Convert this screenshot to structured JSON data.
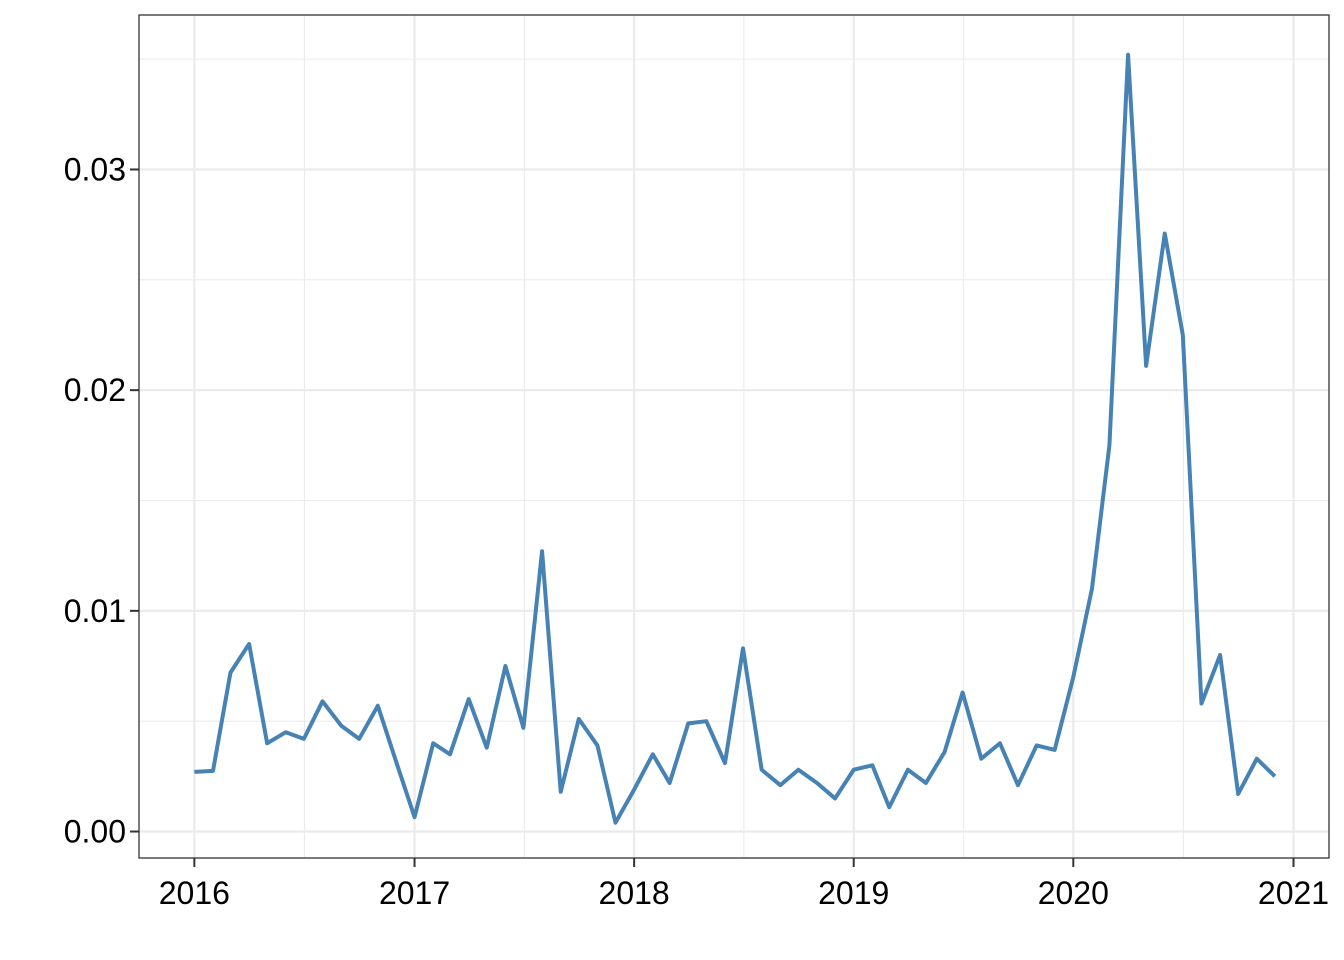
{
  "chart_data": {
    "type": "line",
    "title": "",
    "xlabel": "",
    "ylabel": "",
    "x_dates": [
      "2016-01",
      "2016-02",
      "2016-03",
      "2016-04",
      "2016-05",
      "2016-06",
      "2016-07",
      "2016-08",
      "2016-09",
      "2016-10",
      "2016-11",
      "2016-12",
      "2017-01",
      "2017-02",
      "2017-03",
      "2017-04",
      "2017-05",
      "2017-06",
      "2017-07",
      "2017-08",
      "2017-09",
      "2017-10",
      "2017-11",
      "2017-12",
      "2018-01",
      "2018-02",
      "2018-03",
      "2018-04",
      "2018-05",
      "2018-06",
      "2018-07",
      "2018-08",
      "2018-09",
      "2018-10",
      "2018-11",
      "2018-12",
      "2019-01",
      "2019-02",
      "2019-03",
      "2019-04",
      "2019-05",
      "2019-06",
      "2019-07",
      "2019-08",
      "2019-09",
      "2019-10",
      "2019-11",
      "2019-12",
      "2020-01",
      "2020-02",
      "2020-03",
      "2020-04",
      "2020-05",
      "2020-06",
      "2020-07",
      "2020-08",
      "2020-09",
      "2020-10",
      "2020-11",
      "2020-12"
    ],
    "values": [
      0.0027,
      0.00275,
      0.0072,
      0.0085,
      0.004,
      0.0045,
      0.0042,
      0.0059,
      0.0048,
      0.0042,
      0.0057,
      0.0032,
      0.00065,
      0.004,
      0.0035,
      0.006,
      0.0038,
      0.0075,
      0.0047,
      0.0127,
      0.0018,
      0.0051,
      0.0039,
      0.0004,
      0.0019,
      0.0035,
      0.0022,
      0.0049,
      0.005,
      0.0031,
      0.0083,
      0.0028,
      0.0021,
      0.0028,
      0.0022,
      0.0015,
      0.0028,
      0.003,
      0.0011,
      0.0028,
      0.0022,
      0.0036,
      0.0063,
      0.0033,
      0.004,
      0.0021,
      0.0039,
      0.0037,
      0.007,
      0.011,
      0.0175,
      0.0352,
      0.0211,
      0.0271,
      0.0225,
      0.0058,
      0.008,
      0.0017,
      0.0033,
      0.0025
    ],
    "xlim": [
      "2015-10-01",
      "2021-03-01"
    ],
    "ylim": [
      -0.0012,
      0.037
    ],
    "x_ticks": [
      {
        "date": "2016-01",
        "label": "2016"
      },
      {
        "date": "2017-01",
        "label": "2017"
      },
      {
        "date": "2018-01",
        "label": "2018"
      },
      {
        "date": "2019-01",
        "label": "2019"
      },
      {
        "date": "2020-01",
        "label": "2020"
      },
      {
        "date": "2021-01",
        "label": "2021"
      }
    ],
    "y_ticks": [
      {
        "value": 0.0,
        "label": "0.00"
      },
      {
        "value": 0.01,
        "label": "0.01"
      },
      {
        "value": 0.02,
        "label": "0.02"
      },
      {
        "value": 0.03,
        "label": "0.03"
      }
    ],
    "grid": true,
    "legend": "none",
    "line_color": "#4682B4",
    "grid_color": "#EBEBEB",
    "axis_color": "#333333"
  }
}
